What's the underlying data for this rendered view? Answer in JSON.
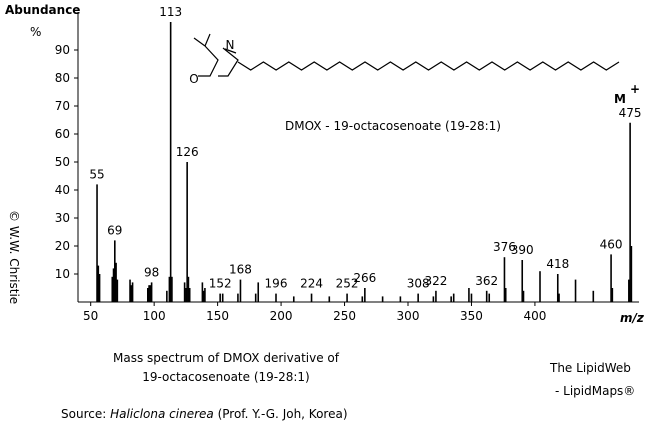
{
  "chart_data": {
    "type": "spectrum",
    "y_label": "Abundance",
    "y_unit": "%",
    "x_label": "m/z",
    "annotation": "DMOX - 19-octacosenoate (19-28:1)",
    "ion_label": "M",
    "ion_charge": "+",
    "structure_labels": [
      "N",
      "O"
    ],
    "color": "#000000",
    "annotation_color": "#1a1aff",
    "xlim": [
      40,
      482
    ],
    "ylim": [
      0,
      100
    ],
    "xticks": [
      50,
      100,
      150,
      200,
      250,
      300,
      350,
      400
    ],
    "yticks": [
      10,
      20,
      30,
      40,
      50,
      60,
      70,
      80,
      90
    ],
    "x": [
      55,
      56,
      57,
      67,
      68,
      69,
      70,
      71,
      81,
      82,
      83,
      95,
      96,
      97,
      98,
      110,
      112,
      113,
      114,
      124,
      125,
      126,
      127,
      128,
      138,
      139,
      140,
      152,
      154,
      166,
      168,
      180,
      182,
      196,
      210,
      224,
      238,
      252,
      264,
      266,
      280,
      294,
      308,
      320,
      322,
      334,
      336,
      348,
      350,
      362,
      364,
      376,
      377,
      390,
      391,
      404,
      418,
      419,
      432,
      446,
      460,
      461,
      474,
      475,
      476
    ],
    "values": [
      42,
      13,
      10,
      9,
      12,
      22,
      14,
      8,
      8,
      6,
      7,
      5,
      6,
      6,
      7,
      4,
      9,
      100,
      9,
      7,
      5,
      50,
      9,
      5,
      7,
      4,
      5,
      3,
      3,
      3,
      8,
      3,
      7,
      3,
      2,
      3,
      2,
      3,
      2,
      5,
      2,
      2,
      3,
      2,
      4,
      2,
      3,
      5,
      3,
      4,
      3,
      16,
      5,
      15,
      4,
      11,
      10,
      3,
      8,
      4,
      17,
      5,
      8,
      64,
      20
    ],
    "peak_labels": [
      "55",
      null,
      null,
      null,
      null,
      "69",
      null,
      null,
      null,
      null,
      null,
      null,
      null,
      null,
      "98",
      null,
      null,
      "113",
      null,
      null,
      null,
      "126",
      null,
      null,
      null,
      null,
      null,
      "152",
      null,
      null,
      "168",
      null,
      null,
      "196",
      null,
      "224",
      null,
      "252",
      null,
      "266",
      null,
      null,
      "308",
      null,
      "322",
      null,
      null,
      null,
      null,
      "362",
      null,
      "376",
      null,
      "390",
      null,
      null,
      "418",
      null,
      null,
      null,
      "460",
      null,
      null,
      "475",
      null
    ],
    "caption": [
      "Mass spectrum of DMOX derivative of",
      "19-octacosenoate (19-28:1)"
    ],
    "source": [
      "Source: ",
      "Haliclona cinerea",
      " (Prof. Y.-G. Joh, Korea)"
    ],
    "credit": [
      "The LipidWeb",
      "- LipidMaps®"
    ],
    "copyright": "© W.W. Christie"
  }
}
